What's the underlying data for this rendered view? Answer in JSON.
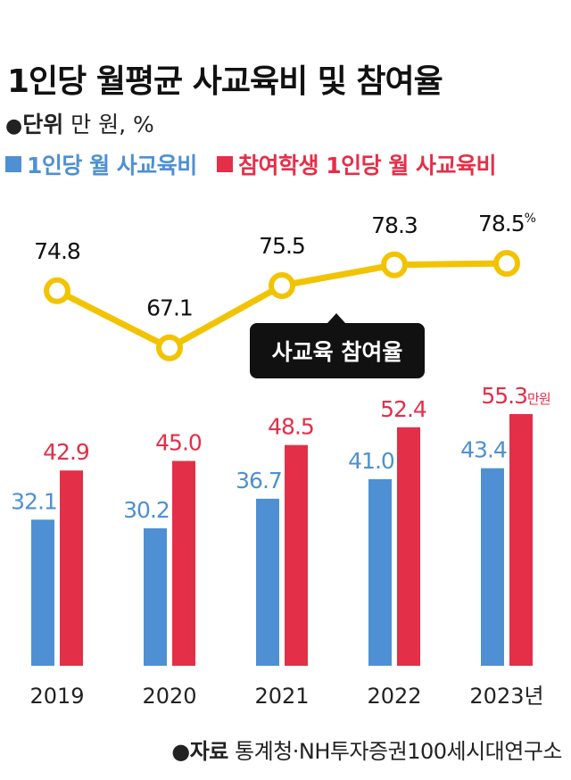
{
  "title": "1인당 월평균 사교육비 및 참여율",
  "unit": {
    "bullet": "●",
    "label": "단위",
    "value": " 만 원, %"
  },
  "legend": [
    {
      "label": "1인당 월 사교육비",
      "color": "#4e90d3"
    },
    {
      "label": "참여학생 1인당 월 사교육비",
      "color": "#e42f48"
    }
  ],
  "source": {
    "bullet": "●",
    "label": "자료",
    "value": " 통계청·NH투자증권100세시대연구소"
  },
  "chart_data": {
    "type": "bar",
    "categories": [
      "2019",
      "2020",
      "2021",
      "2022",
      "2023"
    ],
    "category_suffix_last": "년",
    "bar_series": [
      {
        "name": "1인당 월 사교육비",
        "color": "#4e90d3",
        "values": [
          32.1,
          30.2,
          36.7,
          41.0,
          43.4
        ]
      },
      {
        "name": "참여학생 1인당 월 사교육비",
        "color": "#e42f48",
        "values": [
          42.9,
          45.0,
          48.5,
          52.4,
          55.3
        ],
        "last_label_suffix": "만원"
      }
    ],
    "line_series": {
      "name": "사교육 참여율",
      "color": "#f2c300",
      "values": [
        74.8,
        67.1,
        75.5,
        78.3,
        78.5
      ],
      "last_label_suffix": "%"
    },
    "annotation": "사교육 참여율"
  }
}
